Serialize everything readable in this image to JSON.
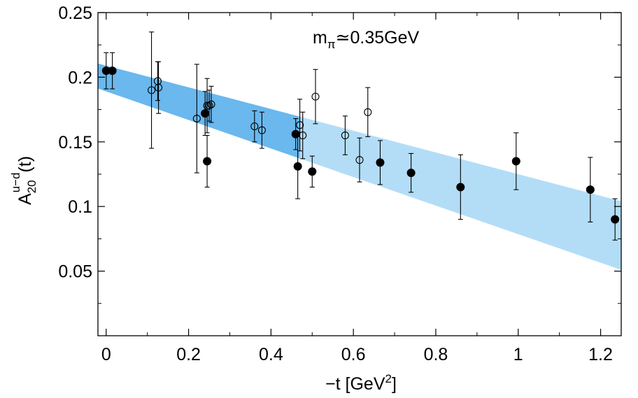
{
  "chart_data": {
    "type": "scatter",
    "title": "",
    "annotation": {
      "main": "m",
      "sub": "π",
      "rest": "≃0.35GeV"
    },
    "xlabel": {
      "main": "−t [GeV",
      "sup": "2",
      "end": "]"
    },
    "ylabel": {
      "main": "A",
      "sub": "20",
      "sup": "u−d",
      "end": "(t)"
    },
    "xlim": [
      -0.02,
      1.25
    ],
    "ylim": [
      0.0,
      0.25
    ],
    "xticks": [
      0,
      0.2,
      0.4,
      0.6,
      0.8,
      1,
      1.2
    ],
    "xtick_labels": [
      "0",
      "0.2",
      "0.4",
      "0.6",
      "0.8",
      "1",
      "1.2"
    ],
    "yticks": [
      0.05,
      0.1,
      0.15,
      0.2,
      0.25
    ],
    "ytick_labels": [
      "0.05",
      "0.1",
      "0.15",
      "0.2",
      "0.25"
    ],
    "grid": false,
    "band_color_dark": "#6ab8ee",
    "band_color_light": "#b3ddf7",
    "band_split_x": 0.47,
    "band": {
      "x": [
        0.0,
        1.25
      ],
      "upper": [
        0.209,
        0.104
      ],
      "lower": [
        0.189,
        0.051
      ]
    },
    "series": [
      {
        "name": "filled",
        "marker": "filled-circle",
        "points": [
          {
            "x": 0.0,
            "y": 0.205,
            "yerr": 0.014
          },
          {
            "x": 0.015,
            "y": 0.205,
            "yerr": 0.014
          },
          {
            "x": 0.24,
            "y": 0.172,
            "yerr": 0.017
          },
          {
            "x": 0.245,
            "y": 0.135,
            "yerr": 0.02
          },
          {
            "x": 0.46,
            "y": 0.156,
            "yerr": 0.012
          },
          {
            "x": 0.465,
            "y": 0.131,
            "yerr": 0.025
          },
          {
            "x": 0.5,
            "y": 0.127,
            "yerr": 0.012
          },
          {
            "x": 0.665,
            "y": 0.134,
            "yerr": 0.017
          },
          {
            "x": 0.74,
            "y": 0.126,
            "yerr": 0.015
          },
          {
            "x": 0.86,
            "y": 0.115,
            "yerr": 0.025
          },
          {
            "x": 0.995,
            "y": 0.135,
            "yerr": 0.022
          },
          {
            "x": 1.175,
            "y": 0.113,
            "yerr": 0.025
          },
          {
            "x": 1.235,
            "y": 0.09,
            "yerr": 0.016
          }
        ]
      },
      {
        "name": "open",
        "marker": "open-circle",
        "points": [
          {
            "x": 0.11,
            "y": 0.19,
            "yerr": 0.045
          },
          {
            "x": 0.125,
            "y": 0.197,
            "yerr": 0.015
          },
          {
            "x": 0.127,
            "y": 0.192,
            "yerr": 0.02
          },
          {
            "x": 0.22,
            "y": 0.168,
            "yerr": 0.042
          },
          {
            "x": 0.245,
            "y": 0.178,
            "yerr": 0.021
          },
          {
            "x": 0.25,
            "y": 0.178,
            "yerr": 0.012
          },
          {
            "x": 0.255,
            "y": 0.179,
            "yerr": 0.014
          },
          {
            "x": 0.36,
            "y": 0.162,
            "yerr": 0.012
          },
          {
            "x": 0.378,
            "y": 0.159,
            "yerr": 0.014
          },
          {
            "x": 0.47,
            "y": 0.163,
            "yerr": 0.02
          },
          {
            "x": 0.477,
            "y": 0.155,
            "yerr": 0.018
          },
          {
            "x": 0.508,
            "y": 0.185,
            "yerr": 0.021
          },
          {
            "x": 0.58,
            "y": 0.155,
            "yerr": 0.015
          },
          {
            "x": 0.615,
            "y": 0.136,
            "yerr": 0.017
          },
          {
            "x": 0.635,
            "y": 0.173,
            "yerr": 0.019
          }
        ]
      }
    ]
  }
}
